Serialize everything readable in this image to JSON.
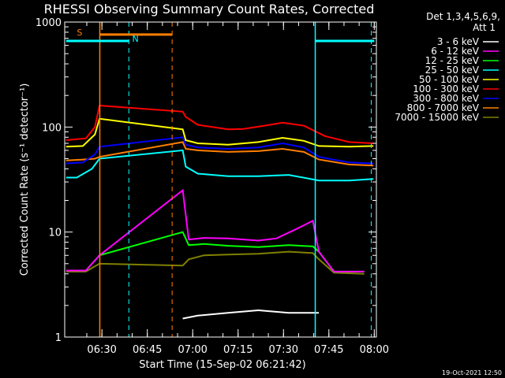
{
  "chart_data": {
    "type": "line",
    "title": "RHESSI Observing Summary Count Rates, Corrected",
    "xlabel": "Start Time (15-Sep-02 06:21:42)",
    "ylabel": "Corrected Count Rate (s⁻¹ detector⁻¹)",
    "yscale": "log",
    "ylim": [
      1,
      1000
    ],
    "xlim_minutes": [
      -4,
      99
    ],
    "x_ticks": [
      {
        "label": "06:30",
        "t": 8.3
      },
      {
        "label": "06:45",
        "t": 23.3
      },
      {
        "label": "07:00",
        "t": 38.3
      },
      {
        "label": "07:15",
        "t": 53.3
      },
      {
        "label": "07:30",
        "t": 68.3
      },
      {
        "label": "07:45",
        "t": 83.3
      },
      {
        "label": "08:00",
        "t": 98.3
      }
    ],
    "y_ticks": [
      {
        "label": "1",
        "v": 1
      },
      {
        "label": "10",
        "v": 10
      },
      {
        "label": "100",
        "v": 100
      },
      {
        "label": "1000",
        "v": 1000
      }
    ],
    "legend_header": [
      "Det 1,3,4,5,6,9,",
      "Att 1"
    ],
    "legend_position": "right",
    "series": [
      {
        "name": "3 - 6 keV",
        "color": "#ffffff",
        "x": [
          -3.5,
          4,
          35,
          40,
          50,
          60,
          70,
          80,
          81
        ],
        "y": [
          null,
          null,
          1.5,
          1.6,
          1.7,
          1.8,
          1.7,
          1.7,
          null
        ]
      },
      {
        "name": "6 - 12 keV",
        "color": "#ff00ff",
        "x": [
          -3.5,
          3,
          7.5,
          35,
          37,
          42,
          50,
          60,
          66,
          72,
          78,
          80,
          85,
          95
        ],
        "y": [
          4.3,
          4.3,
          6,
          25,
          8.5,
          8.8,
          8.7,
          8.3,
          8.7,
          10.5,
          12.8,
          6.5,
          4.2,
          4.2
        ]
      },
      {
        "name": "12 - 25 keV",
        "color": "#00ff00",
        "x": [
          -3.5,
          3,
          7.5,
          35,
          37,
          42,
          50,
          60,
          70,
          78,
          80,
          85,
          95
        ],
        "y": [
          4.3,
          4.3,
          6,
          10,
          7.5,
          7.7,
          7.4,
          7.2,
          7.5,
          7.3,
          6.5,
          4.2,
          4.2
        ]
      },
      {
        "name": "25 - 50 keV",
        "color": "#00ffff",
        "x": [
          -3.5,
          0,
          5,
          7.5,
          35,
          36,
          40,
          50,
          60,
          70,
          80,
          90,
          98
        ],
        "y": [
          33,
          33,
          40,
          50,
          60,
          42,
          36,
          34,
          34,
          35,
          31,
          31,
          32
        ]
      },
      {
        "name": "50 - 100 keV",
        "color": "#ffff00",
        "x": [
          -3.5,
          2,
          6,
          7.5,
          35,
          36,
          40,
          50,
          60,
          68,
          75,
          80,
          90,
          98
        ],
        "y": [
          65,
          66,
          85,
          120,
          95,
          75,
          70,
          68,
          72,
          79,
          74,
          66,
          65,
          66
        ]
      },
      {
        "name": "100 - 300 keV",
        "color": "#ff0000",
        "x": [
          -3.5,
          3,
          6,
          7.5,
          35,
          36,
          40,
          50,
          55,
          62,
          68,
          75,
          82,
          90,
          98
        ],
        "y": [
          75,
          78,
          100,
          160,
          140,
          125,
          105,
          95,
          96,
          103,
          110,
          103,
          82,
          72,
          70
        ]
      },
      {
        "name": "300 - 800 keV",
        "color": "#0000ff",
        "x": [
          -3.5,
          2,
          6,
          7.5,
          35,
          36,
          40,
          50,
          60,
          68,
          75,
          80,
          90,
          98
        ],
        "y": [
          45,
          46,
          55,
          65,
          80,
          68,
          64,
          62,
          64,
          70,
          64,
          52,
          46,
          45
        ]
      },
      {
        "name": "800 - 7000 keV",
        "color": "#ff7f00",
        "x": [
          -3.5,
          2,
          6,
          7.5,
          35,
          36,
          40,
          50,
          60,
          68,
          75,
          80,
          90,
          98
        ],
        "y": [
          48,
          49,
          50,
          52,
          72,
          62,
          60,
          58,
          59,
          62,
          58,
          49,
          44,
          43
        ]
      },
      {
        "name": "7000 - 15000 keV",
        "color": "#808000",
        "x": [
          -3.5,
          3,
          7.5,
          35,
          37,
          42,
          50,
          60,
          70,
          78,
          80,
          85,
          95
        ],
        "y": [
          4.2,
          4.2,
          5,
          4.8,
          5.5,
          6,
          6.1,
          6.2,
          6.5,
          6.3,
          5.5,
          4.1,
          4.0
        ]
      }
    ],
    "annotations": {
      "flag_s_label": "S",
      "flag_n_label": "N",
      "solid_lines": [
        {
          "t": 7.6,
          "color": "#ff7f00"
        },
        {
          "t": 78.8,
          "color": "#00ffff"
        }
      ],
      "dashed_lines": [
        {
          "t": 17.2,
          "color": "#00ffff"
        },
        {
          "t": 31.5,
          "color": "#ff7f00"
        },
        {
          "t": 97.3,
          "color": "#00ffff"
        }
      ],
      "flag_bars": [
        {
          "color": "#00ffff",
          "t0": -3.5,
          "t1": 17.2,
          "v": 660
        },
        {
          "color": "#ff7f00",
          "t0": 7.6,
          "t1": 31.5,
          "v": 760
        },
        {
          "color": "#00ffff",
          "t0": 78.8,
          "t1": 98.3,
          "v": 660
        }
      ]
    }
  },
  "footer": {
    "timestamp": "19-Oct-2021 12:50"
  }
}
